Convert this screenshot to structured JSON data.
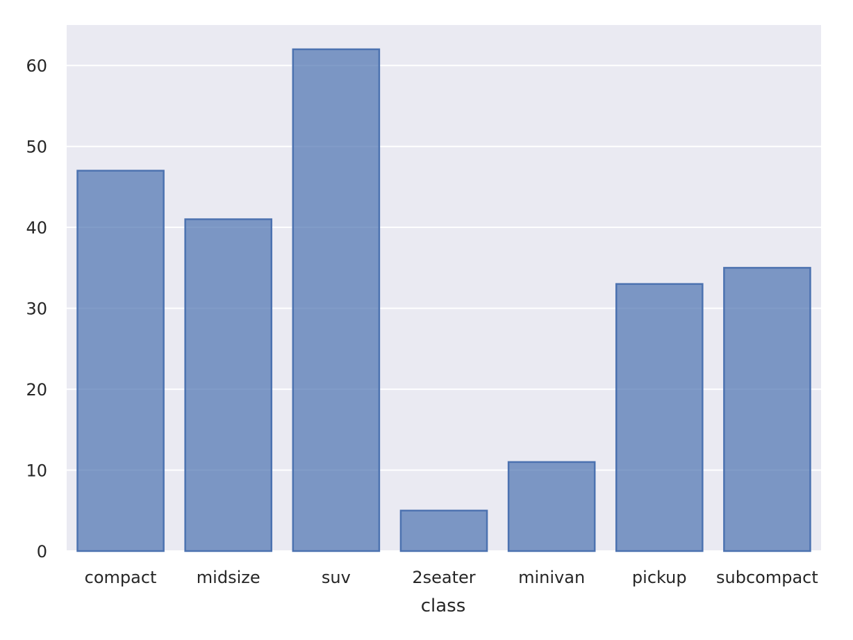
{
  "chart_data": {
    "type": "bar",
    "title": "",
    "xlabel": "class",
    "ylabel": "",
    "categories": [
      "compact",
      "midsize",
      "suv",
      "2seater",
      "minivan",
      "pickup",
      "subcompact"
    ],
    "values": [
      47,
      41,
      62,
      5,
      11,
      33,
      35
    ],
    "ylim": [
      0,
      65
    ],
    "yticks": [
      0,
      10,
      20,
      30,
      40,
      50,
      60
    ],
    "grid": true,
    "legend": "none",
    "colors": {
      "background": "#eaeaf2",
      "bar_fill": "#4c72b0",
      "bar_edge": "#4c72b0",
      "grid": "#ffffff"
    }
  }
}
